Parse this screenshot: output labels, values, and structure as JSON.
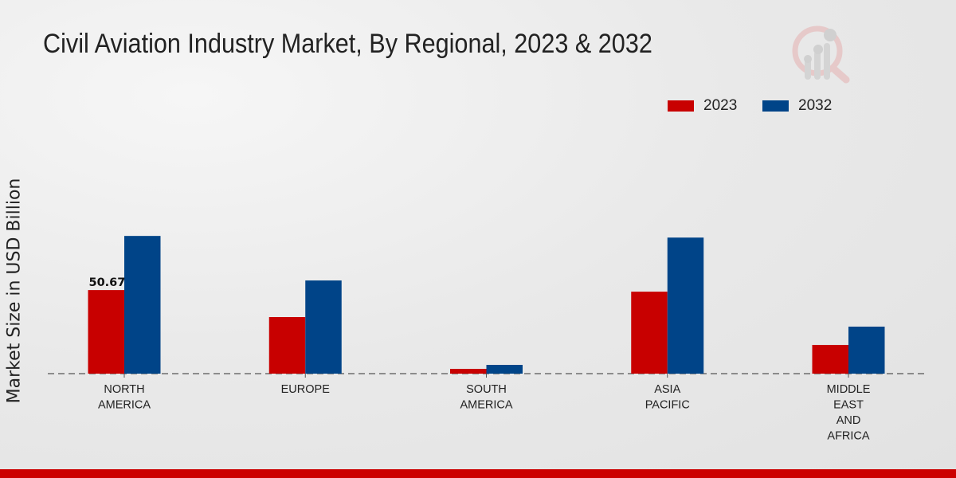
{
  "chart_data": {
    "type": "bar",
    "title": "Civil Aviation Industry Market, By Regional, 2023 & 2032",
    "xlabel": "",
    "ylabel": "Market Size in USD Billion",
    "categories": [
      [
        "NORTH",
        "AMERICA"
      ],
      [
        "EUROPE"
      ],
      [
        "SOUTH",
        "AMERICA"
      ],
      [
        "ASIA",
        "PACIFIC"
      ],
      [
        "MIDDLE",
        "EAST",
        "AND",
        "AFRICA"
      ]
    ],
    "series": [
      {
        "name": "2023",
        "color": "#c80000",
        "values": [
          50.67,
          34.3,
          2.9,
          49.7,
          17.4
        ]
      },
      {
        "name": "2032",
        "color": "#004488",
        "values": [
          83.5,
          56.5,
          5.3,
          82.5,
          28.5
        ]
      }
    ],
    "data_labels": [
      {
        "series": 0,
        "index": 0,
        "text": "50.67"
      }
    ],
    "ylim": [
      0,
      100
    ],
    "grid": false,
    "legend": "top-right"
  }
}
